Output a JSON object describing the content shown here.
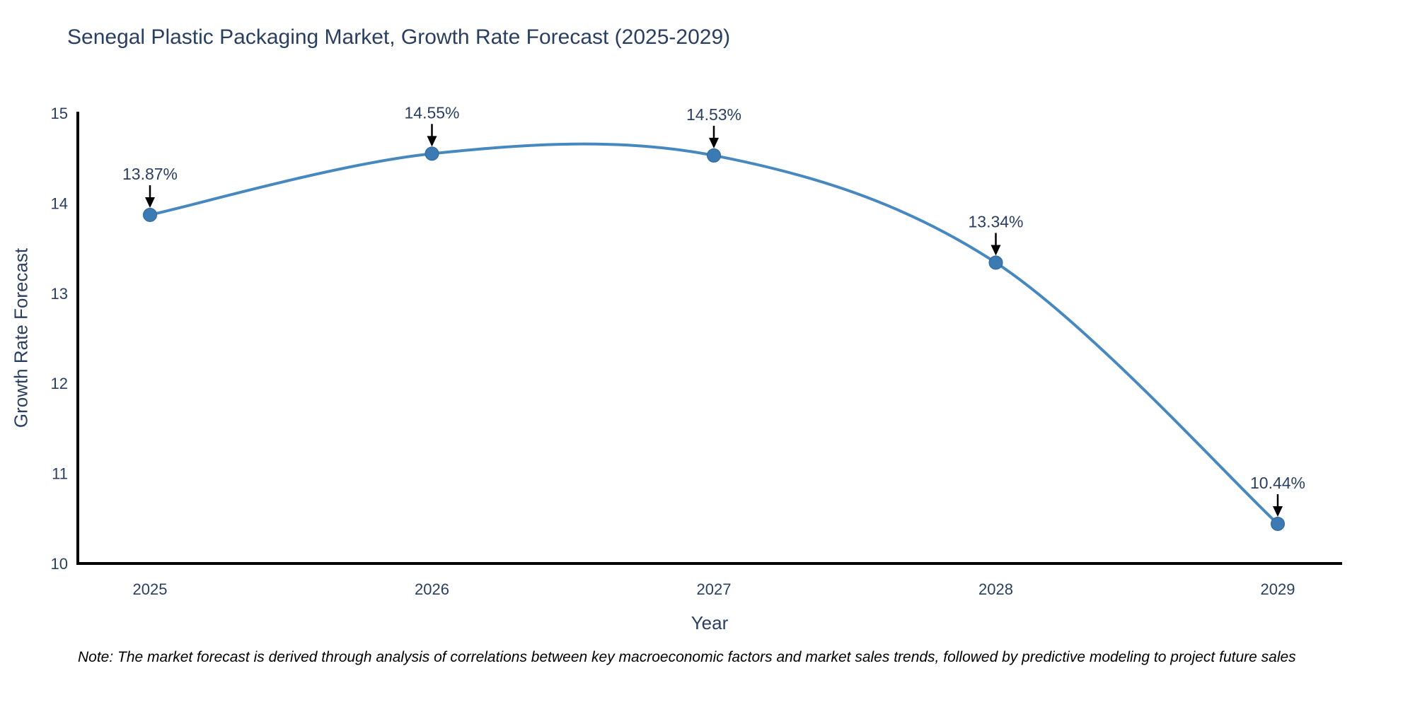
{
  "header": {
    "title": "Senegal Plastic Packaging Market, Growth Rate Forecast (2025-2029)"
  },
  "chart_data": {
    "type": "line",
    "title": "Senegal Plastic Packaging Market, Growth Rate Forecast (2025-2029)",
    "x": [
      "2025",
      "2026",
      "2027",
      "2028",
      "2029"
    ],
    "y": [
      13.87,
      14.55,
      14.53,
      13.34,
      10.44
    ],
    "point_labels": [
      "13.87%",
      "14.55%",
      "14.53%",
      "13.34%",
      "10.44%"
    ],
    "xlabel": "Year",
    "ylabel": "Growth Rate Forecast",
    "ylim": [
      10,
      15
    ],
    "yticks": [
      10,
      11,
      12,
      13,
      14,
      15
    ],
    "line_shape": "spline",
    "grid": false,
    "legend": "none",
    "colors": {
      "line": "#4788bf",
      "marker": "#3c7ab4",
      "marker_edge": "#2f6699",
      "axis": "#000000",
      "tick_text": "#2a3f5f",
      "annotation_text": "#2a3f5f",
      "arrow": "#000000"
    }
  },
  "footer": {
    "note": "Note: The market forecast is derived through analysis of correlations between key macroeconomic factors and market sales trends, followed by predictive modeling to project future sales"
  }
}
